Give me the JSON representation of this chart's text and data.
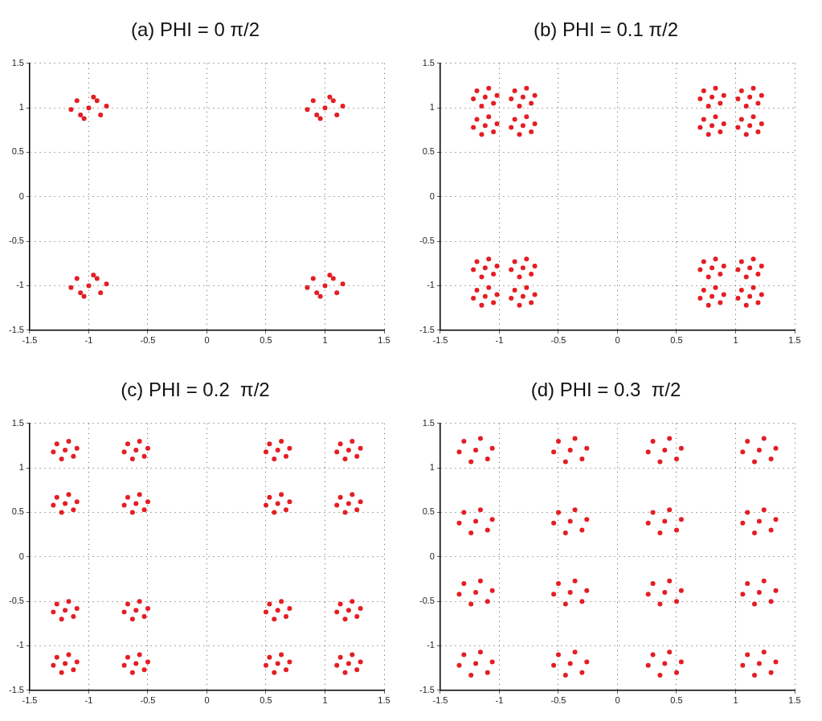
{
  "chart_data": [
    {
      "type": "scatter",
      "title": "(a) PHI = 0 π/2",
      "color": "#e31e24",
      "marker": "circle",
      "grid": true,
      "legend": false,
      "xlim": [
        -1.5,
        1.5
      ],
      "ylim": [
        -1.5,
        1.5
      ],
      "xticks": [
        -1.5,
        -1,
        -0.5,
        0,
        0.5,
        1,
        1.5
      ],
      "yticks": [
        -1.5,
        -1,
        -0.5,
        0,
        0.5,
        1,
        1.5
      ],
      "x": [
        -1,
        -0.85,
        -1.15,
        -0.96,
        -1.04,
        -0.9,
        -1.1,
        -0.93,
        -1.07,
        1,
        1.15,
        0.85,
        1.04,
        0.96,
        1.1,
        0.9,
        1.07,
        0.93,
        -1,
        -0.85,
        -1.15,
        -0.96,
        -1.04,
        -0.9,
        -1.1,
        -0.93,
        -1.07,
        1,
        1.15,
        0.85,
        1.04,
        0.96,
        1.1,
        0.9,
        1.07,
        0.93
      ],
      "values": [
        1,
        1.02,
        0.98,
        1.12,
        0.88,
        0.92,
        1.08,
        1.08,
        0.92,
        1,
        1.02,
        0.98,
        1.12,
        0.88,
        0.92,
        1.08,
        1.08,
        0.92,
        -1,
        -0.98,
        -1.02,
        -0.88,
        -1.12,
        -1.08,
        -0.92,
        -0.92,
        -1.08,
        -1,
        -0.98,
        -1.02,
        -0.88,
        -1.12,
        -1.08,
        -0.92,
        -0.92,
        -1.08
      ]
    },
    {
      "type": "scatter",
      "title": "(b) PHI = 0.1 π/2",
      "color": "#e31e24",
      "marker": "circle",
      "grid": true,
      "legend": false,
      "xlim": [
        -1.5,
        1.5
      ],
      "ylim": [
        -1.5,
        1.5
      ],
      "xticks": [
        -1.5,
        -1,
        -0.5,
        0,
        0.5,
        1,
        1.5
      ],
      "yticks": [
        -1.5,
        -1,
        -0.5,
        0,
        0.5,
        1,
        1.5
      ],
      "x": [
        -1.12,
        -1.02,
        -1.22,
        -1.09,
        -1.15,
        -1.05,
        -1.19,
        -0.8,
        -0.7,
        -0.9,
        -0.77,
        -0.83,
        -0.73,
        -0.87,
        0.8,
        0.9,
        0.7,
        0.83,
        0.77,
        0.87,
        0.73,
        1.12,
        1.22,
        1.02,
        1.15,
        1.09,
        1.19,
        1.05,
        -1.12,
        -1.02,
        -1.22,
        -1.09,
        -1.15,
        -1.05,
        -1.19,
        -0.8,
        -0.7,
        -0.9,
        -0.77,
        -0.83,
        -0.73,
        -0.87,
        0.8,
        0.9,
        0.7,
        0.83,
        0.77,
        0.87,
        0.73,
        1.12,
        1.22,
        1.02,
        1.15,
        1.09,
        1.19,
        1.05,
        -1.12,
        -1.02,
        -1.22,
        -1.09,
        -1.15,
        -1.05,
        -1.19,
        -0.8,
        -0.7,
        -0.9,
        -0.77,
        -0.83,
        -0.73,
        -0.87,
        0.8,
        0.9,
        0.7,
        0.83,
        0.77,
        0.87,
        0.73,
        1.12,
        1.22,
        1.02,
        1.15,
        1.09,
        1.19,
        1.05,
        -1.12,
        -1.02,
        -1.22,
        -1.09,
        -1.15,
        -1.05,
        -1.19,
        -0.8,
        -0.7,
        -0.9,
        -0.77,
        -0.83,
        -0.73,
        -0.87,
        0.8,
        0.9,
        0.7,
        0.83,
        0.77,
        0.87,
        0.73,
        1.12,
        1.22,
        1.02,
        1.15,
        1.09,
        1.19,
        1.05
      ],
      "values": [
        1.12,
        1.14,
        1.1,
        1.22,
        1.02,
        1.05,
        1.19,
        1.12,
        1.14,
        1.1,
        1.22,
        1.02,
        1.05,
        1.19,
        1.12,
        1.14,
        1.1,
        1.22,
        1.02,
        1.05,
        1.19,
        1.12,
        1.14,
        1.1,
        1.22,
        1.02,
        1.05,
        1.19,
        0.8,
        0.82,
        0.78,
        0.9,
        0.7,
        0.73,
        0.87,
        0.8,
        0.82,
        0.78,
        0.9,
        0.7,
        0.73,
        0.87,
        0.8,
        0.82,
        0.78,
        0.9,
        0.7,
        0.73,
        0.87,
        0.8,
        0.82,
        0.78,
        0.9,
        0.7,
        0.73,
        0.87,
        -0.8,
        -0.78,
        -0.82,
        -0.7,
        -0.9,
        -0.87,
        -0.73,
        -0.8,
        -0.78,
        -0.82,
        -0.7,
        -0.9,
        -0.87,
        -0.73,
        -0.8,
        -0.78,
        -0.82,
        -0.7,
        -0.9,
        -0.87,
        -0.73,
        -0.8,
        -0.78,
        -0.82,
        -0.7,
        -0.9,
        -0.87,
        -0.73,
        -1.12,
        -1.1,
        -1.14,
        -1.02,
        -1.22,
        -1.19,
        -1.05,
        -1.12,
        -1.1,
        -1.14,
        -1.02,
        -1.22,
        -1.19,
        -1.05,
        -1.12,
        -1.1,
        -1.14,
        -1.02,
        -1.22,
        -1.19,
        -1.05,
        -1.12,
        -1.1,
        -1.14,
        -1.02,
        -1.22,
        -1.19,
        -1.05
      ]
    },
    {
      "type": "scatter",
      "title": "(c) PHI = 0.2  π/2",
      "color": "#e31e24",
      "marker": "circle",
      "grid": true,
      "legend": false,
      "xlim": [
        -1.5,
        1.5
      ],
      "ylim": [
        -1.5,
        1.5
      ],
      "xticks": [
        -1.5,
        -1,
        -0.5,
        0,
        0.5,
        1,
        1.5
      ],
      "yticks": [
        -1.5,
        -1,
        -0.5,
        0,
        0.5,
        1,
        1.5
      ],
      "x": [
        -1.2,
        -1.1,
        -1.3,
        -1.17,
        -1.23,
        -1.13,
        -1.27,
        -0.6,
        -0.5,
        -0.7,
        -0.57,
        -0.63,
        -0.53,
        -0.67,
        0.6,
        0.7,
        0.5,
        0.63,
        0.57,
        0.67,
        0.53,
        1.2,
        1.3,
        1.1,
        1.23,
        1.17,
        1.27,
        1.13,
        -1.2,
        -1.1,
        -1.3,
        -1.17,
        -1.23,
        -1.13,
        -1.27,
        -0.6,
        -0.5,
        -0.7,
        -0.57,
        -0.63,
        -0.53,
        -0.67,
        0.6,
        0.7,
        0.5,
        0.63,
        0.57,
        0.67,
        0.53,
        1.2,
        1.3,
        1.1,
        1.23,
        1.17,
        1.27,
        1.13,
        -1.2,
        -1.1,
        -1.3,
        -1.17,
        -1.23,
        -1.13,
        -1.27,
        -0.6,
        -0.5,
        -0.7,
        -0.57,
        -0.63,
        -0.53,
        -0.67,
        0.6,
        0.7,
        0.5,
        0.63,
        0.57,
        0.67,
        0.53,
        1.2,
        1.3,
        1.1,
        1.23,
        1.17,
        1.27,
        1.13,
        -1.2,
        -1.1,
        -1.3,
        -1.17,
        -1.23,
        -1.13,
        -1.27,
        -0.6,
        -0.5,
        -0.7,
        -0.57,
        -0.63,
        -0.53,
        -0.67,
        0.6,
        0.7,
        0.5,
        0.63,
        0.57,
        0.67,
        0.53,
        1.2,
        1.3,
        1.1,
        1.23,
        1.17,
        1.27,
        1.13
      ],
      "values": [
        1.2,
        1.22,
        1.18,
        1.3,
        1.1,
        1.13,
        1.27,
        1.2,
        1.22,
        1.18,
        1.3,
        1.1,
        1.13,
        1.27,
        1.2,
        1.22,
        1.18,
        1.3,
        1.1,
        1.13,
        1.27,
        1.2,
        1.22,
        1.18,
        1.3,
        1.1,
        1.13,
        1.27,
        0.6,
        0.62,
        0.58,
        0.7,
        0.5,
        0.53,
        0.67,
        0.6,
        0.62,
        0.58,
        0.7,
        0.5,
        0.53,
        0.67,
        0.6,
        0.62,
        0.58,
        0.7,
        0.5,
        0.53,
        0.67,
        0.6,
        0.62,
        0.58,
        0.7,
        0.5,
        0.53,
        0.67,
        -0.6,
        -0.58,
        -0.62,
        -0.5,
        -0.7,
        -0.67,
        -0.53,
        -0.6,
        -0.58,
        -0.62,
        -0.5,
        -0.7,
        -0.67,
        -0.53,
        -0.6,
        -0.58,
        -0.62,
        -0.5,
        -0.7,
        -0.67,
        -0.53,
        -0.6,
        -0.58,
        -0.62,
        -0.5,
        -0.7,
        -0.67,
        -0.53,
        -1.2,
        -1.18,
        -1.22,
        -1.1,
        -1.3,
        -1.27,
        -1.13,
        -1.2,
        -1.18,
        -1.22,
        -1.1,
        -1.3,
        -1.27,
        -1.13,
        -1.2,
        -1.18,
        -1.22,
        -1.1,
        -1.3,
        -1.27,
        -1.13,
        -1.2,
        -1.18,
        -1.22,
        -1.1,
        -1.3,
        -1.27,
        -1.13
      ]
    },
    {
      "type": "scatter",
      "title": "(d) PHI = 0.3  π/2",
      "color": "#e31e24",
      "marker": "circle",
      "grid": true,
      "legend": false,
      "xlim": [
        -1.5,
        1.5
      ],
      "ylim": [
        -1.5,
        1.5
      ],
      "xticks": [
        -1.5,
        -1,
        -0.5,
        0,
        0.5,
        1,
        1.5
      ],
      "yticks": [
        -1.5,
        -1,
        -0.5,
        0,
        0.5,
        1,
        1.5
      ],
      "x": [
        -1.2,
        -1.06,
        -1.34,
        -1.16,
        -1.24,
        -1.1,
        -1.3,
        -0.4,
        -0.26,
        -0.54,
        -0.36,
        -0.44,
        -0.3,
        -0.5,
        0.4,
        0.54,
        0.26,
        0.44,
        0.36,
        0.5,
        0.3,
        1.2,
        1.34,
        1.06,
        1.24,
        1.16,
        1.3,
        1.1,
        -1.2,
        -1.06,
        -1.34,
        -1.16,
        -1.24,
        -1.1,
        -1.3,
        -0.4,
        -0.26,
        -0.54,
        -0.36,
        -0.44,
        -0.3,
        -0.5,
        0.4,
        0.54,
        0.26,
        0.44,
        0.36,
        0.5,
        0.3,
        1.2,
        1.34,
        1.06,
        1.24,
        1.16,
        1.3,
        1.1,
        -1.2,
        -1.06,
        -1.34,
        -1.16,
        -1.24,
        -1.1,
        -1.3,
        -0.4,
        -0.26,
        -0.54,
        -0.36,
        -0.44,
        -0.3,
        -0.5,
        0.4,
        0.54,
        0.26,
        0.44,
        0.36,
        0.5,
        0.3,
        1.2,
        1.34,
        1.06,
        1.24,
        1.16,
        1.3,
        1.1,
        -1.2,
        -1.06,
        -1.34,
        -1.16,
        -1.24,
        -1.1,
        -1.3,
        -0.4,
        -0.26,
        -0.54,
        -0.36,
        -0.44,
        -0.3,
        -0.5,
        0.4,
        0.54,
        0.26,
        0.44,
        0.36,
        0.5,
        0.3,
        1.2,
        1.34,
        1.06,
        1.24,
        1.16,
        1.3,
        1.1
      ],
      "values": [
        1.2,
        1.22,
        1.18,
        1.33,
        1.07,
        1.1,
        1.3,
        1.2,
        1.22,
        1.18,
        1.33,
        1.07,
        1.1,
        1.3,
        1.2,
        1.22,
        1.18,
        1.33,
        1.07,
        1.1,
        1.3,
        1.2,
        1.22,
        1.18,
        1.33,
        1.07,
        1.1,
        1.3,
        0.4,
        0.42,
        0.38,
        0.53,
        0.27,
        0.3,
        0.5,
        0.4,
        0.42,
        0.38,
        0.53,
        0.27,
        0.3,
        0.5,
        0.4,
        0.42,
        0.38,
        0.53,
        0.27,
        0.3,
        0.5,
        0.4,
        0.42,
        0.38,
        0.53,
        0.27,
        0.3,
        0.5,
        -0.4,
        -0.38,
        -0.42,
        -0.27,
        -0.53,
        -0.5,
        -0.3,
        -0.4,
        -0.38,
        -0.42,
        -0.27,
        -0.53,
        -0.5,
        -0.3,
        -0.4,
        -0.38,
        -0.42,
        -0.27,
        -0.53,
        -0.5,
        -0.3,
        -0.4,
        -0.38,
        -0.42,
        -0.27,
        -0.53,
        -0.5,
        -0.3,
        -1.2,
        -1.18,
        -1.22,
        -1.07,
        -1.33,
        -1.3,
        -1.1,
        -1.2,
        -1.18,
        -1.22,
        -1.07,
        -1.33,
        -1.3,
        -1.1,
        -1.2,
        -1.18,
        -1.22,
        -1.07,
        -1.33,
        -1.3,
        -1.1,
        -1.2,
        -1.18,
        -1.22,
        -1.07,
        -1.33,
        -1.3,
        -1.1
      ]
    }
  ]
}
